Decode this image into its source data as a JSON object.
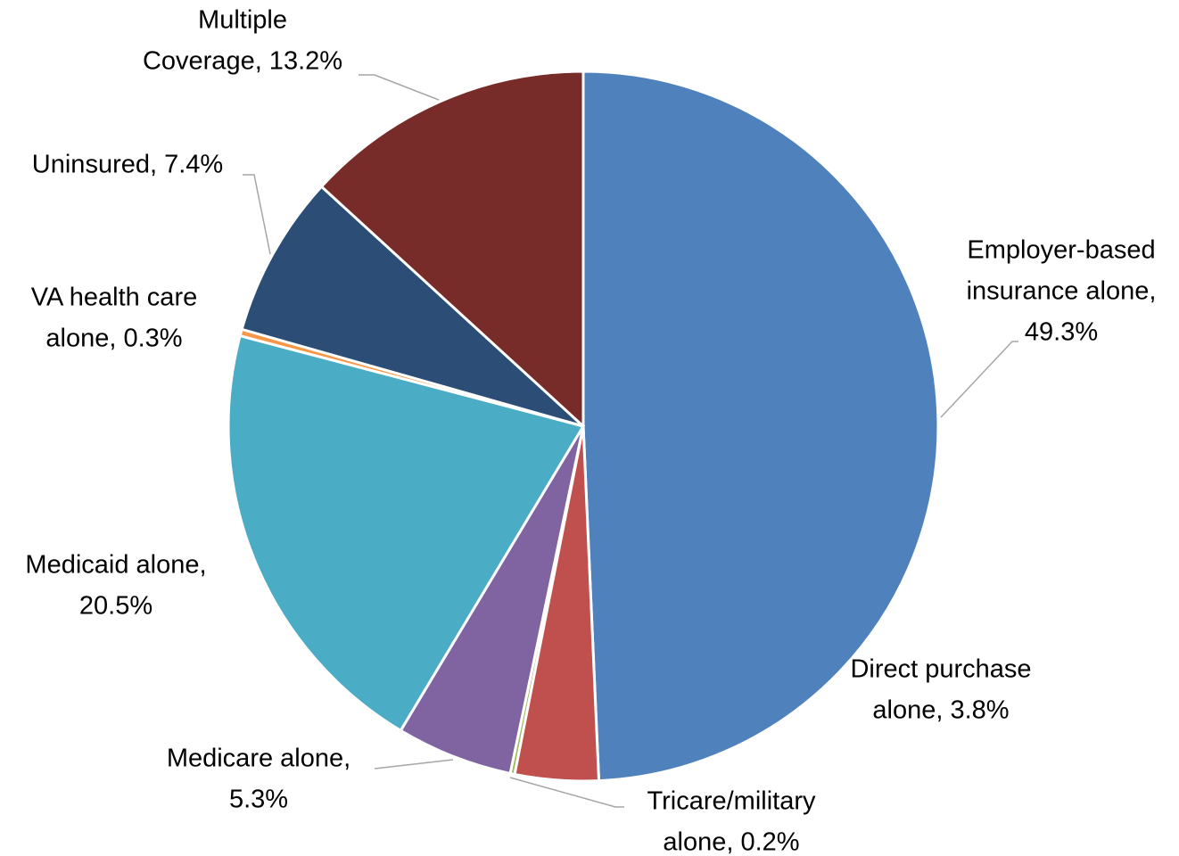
{
  "chart_data": {
    "type": "pie",
    "values": [
      49.3,
      3.8,
      0.2,
      5.3,
      20.5,
      0.3,
      7.4,
      13.2
    ],
    "value_labels": [
      [
        "Employer-based",
        "insurance alone,",
        "49.3%"
      ],
      [
        "Direct purchase",
        "alone, 3.8%"
      ],
      [
        "Tricare/military",
        "alone, 0.2%"
      ],
      [
        "Medicare alone,",
        "5.3%"
      ],
      [
        "Medicaid alone,",
        "20.5%"
      ],
      [
        "VA health care",
        "alone, 0.3%"
      ],
      [
        "Uninsured, 7.4%"
      ],
      [
        "Multiple",
        "Coverage, 13.2%"
      ]
    ],
    "colors": [
      "#4f81bd",
      "#c0504d",
      "#9bbb59",
      "#8064a2",
      "#4bacc6",
      "#f79646",
      "#2c4d75",
      "#772c2a"
    ]
  }
}
